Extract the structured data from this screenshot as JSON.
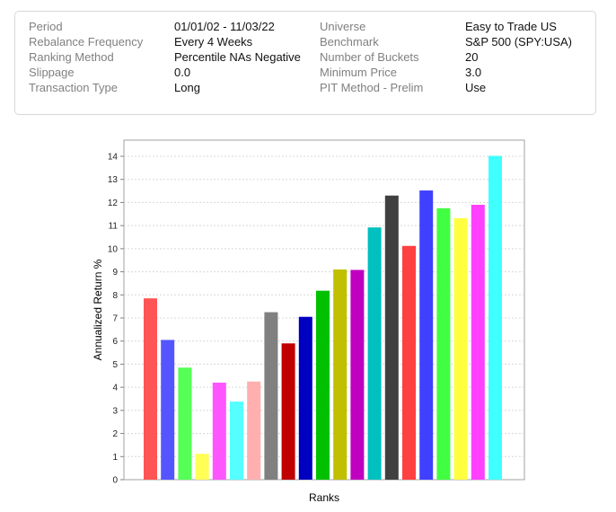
{
  "summary": {
    "left": [
      {
        "label": "Period",
        "value": "01/01/02 - 11/03/22"
      },
      {
        "label": "Rebalance Frequency",
        "value": "Every 4 Weeks"
      },
      {
        "label": "Ranking Method",
        "value": "Percentile NAs Negative"
      },
      {
        "label": "Slippage",
        "value": "0.0"
      },
      {
        "label": "Transaction Type",
        "value": "Long"
      }
    ],
    "right": [
      {
        "label": "Universe",
        "value": "Easy to Trade US"
      },
      {
        "label": "Benchmark",
        "value": "S&P 500 (SPY:USA)"
      },
      {
        "label": "Number of Buckets",
        "value": "20"
      },
      {
        "label": "Minimum Price",
        "value": "3.0"
      },
      {
        "label": "PIT Method - Prelim",
        "value": "Use"
      }
    ]
  },
  "chart_data": {
    "type": "bar",
    "xlabel": "Ranks",
    "ylabel": "Annualized Return %",
    "ylim": [
      0,
      14.7
    ],
    "yticks": [
      0,
      1,
      2,
      3,
      4,
      5,
      6,
      7,
      8,
      9,
      10,
      11,
      12,
      13,
      14
    ],
    "grid": true,
    "values": [
      7.85,
      6.05,
      4.85,
      1.12,
      4.2,
      3.38,
      4.25,
      7.25,
      5.9,
      7.05,
      8.18,
      9.1,
      9.08,
      10.92,
      12.3,
      10.12,
      12.52,
      11.75,
      11.32,
      11.9,
      14.02
    ],
    "colors": [
      "#ff5555",
      "#5555ff",
      "#55ff55",
      "#ffff55",
      "#ff55ff",
      "#55ffff",
      "#ffafaf",
      "#808080",
      "#c00000",
      "#0000c0",
      "#00c000",
      "#c0c000",
      "#c000c0",
      "#00c0c0",
      "#404040",
      "#ff4040",
      "#4040ff",
      "#40ff40",
      "#ffff40",
      "#ff40ff",
      "#40ffff"
    ]
  }
}
